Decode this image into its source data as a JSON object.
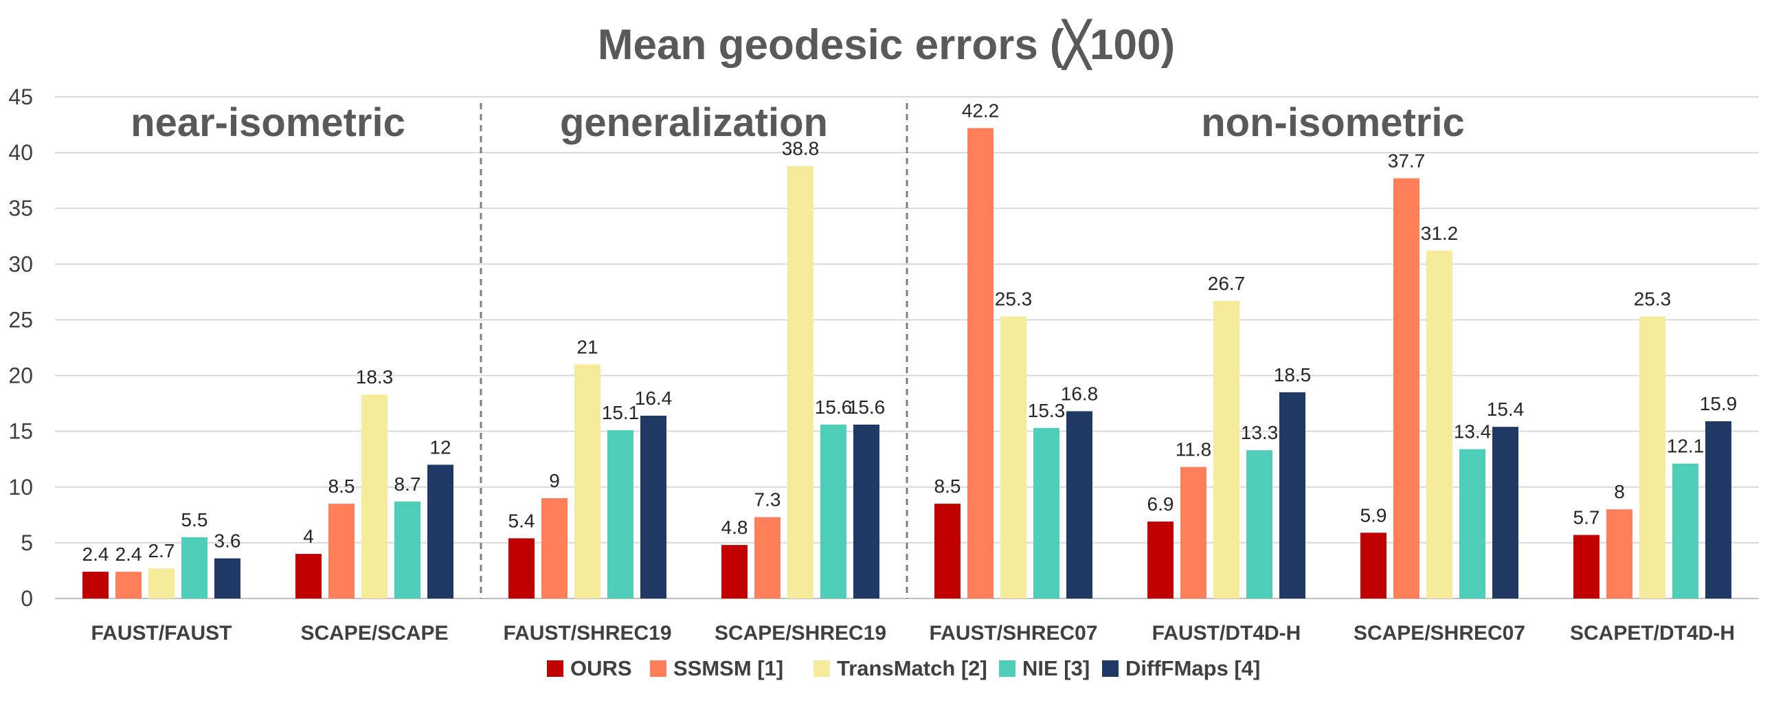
{
  "chart_data": {
    "type": "bar",
    "title": "Mean geodesic errors (╳100)",
    "xlabel": "",
    "ylabel": "",
    "ylim": [
      0,
      45
    ],
    "yticks": [
      0,
      5,
      10,
      15,
      20,
      25,
      30,
      35,
      40,
      45
    ],
    "grid": true,
    "legend_position": "bottom",
    "categories": [
      "FAUST/FAUST",
      "SCAPE/SCAPE",
      "FAUST/SHREC19",
      "SCAPE/SHREC19",
      "FAUST/SHREC07",
      "FAUST/DT4D-H",
      "SCAPE/SHREC07",
      "SCAPET/DT4D-H"
    ],
    "series": [
      {
        "name": "OURS",
        "color": "#c00000",
        "values": [
          2.4,
          4,
          5.4,
          4.8,
          8.5,
          6.9,
          5.9,
          5.7
        ]
      },
      {
        "name": "SSMSM [1]",
        "color": "#ff7f5a",
        "values": [
          2.4,
          8.5,
          9,
          7.3,
          42.2,
          11.8,
          37.7,
          8
        ]
      },
      {
        "name": "TransMatch [2]",
        "color": "#f5eb9a",
        "values": [
          2.7,
          18.3,
          21,
          38.8,
          25.3,
          26.7,
          31.2,
          25.3
        ]
      },
      {
        "name": "NIE [3]",
        "color": "#4ecdb8",
        "values": [
          5.5,
          8.7,
          15.1,
          15.6,
          15.3,
          13.3,
          13.4,
          12.1
        ]
      },
      {
        "name": "DiffFMaps [4]",
        "color": "#1f3864",
        "values": [
          3.6,
          12,
          16.4,
          15.6,
          16.8,
          18.5,
          15.4,
          15.9
        ]
      }
    ],
    "sections": [
      {
        "label": "near-isometric",
        "categories": [
          0,
          1
        ]
      },
      {
        "label": "generalization",
        "categories": [
          2,
          3
        ]
      },
      {
        "label": "non-isometric",
        "categories": [
          4,
          5,
          6,
          7
        ]
      }
    ]
  }
}
